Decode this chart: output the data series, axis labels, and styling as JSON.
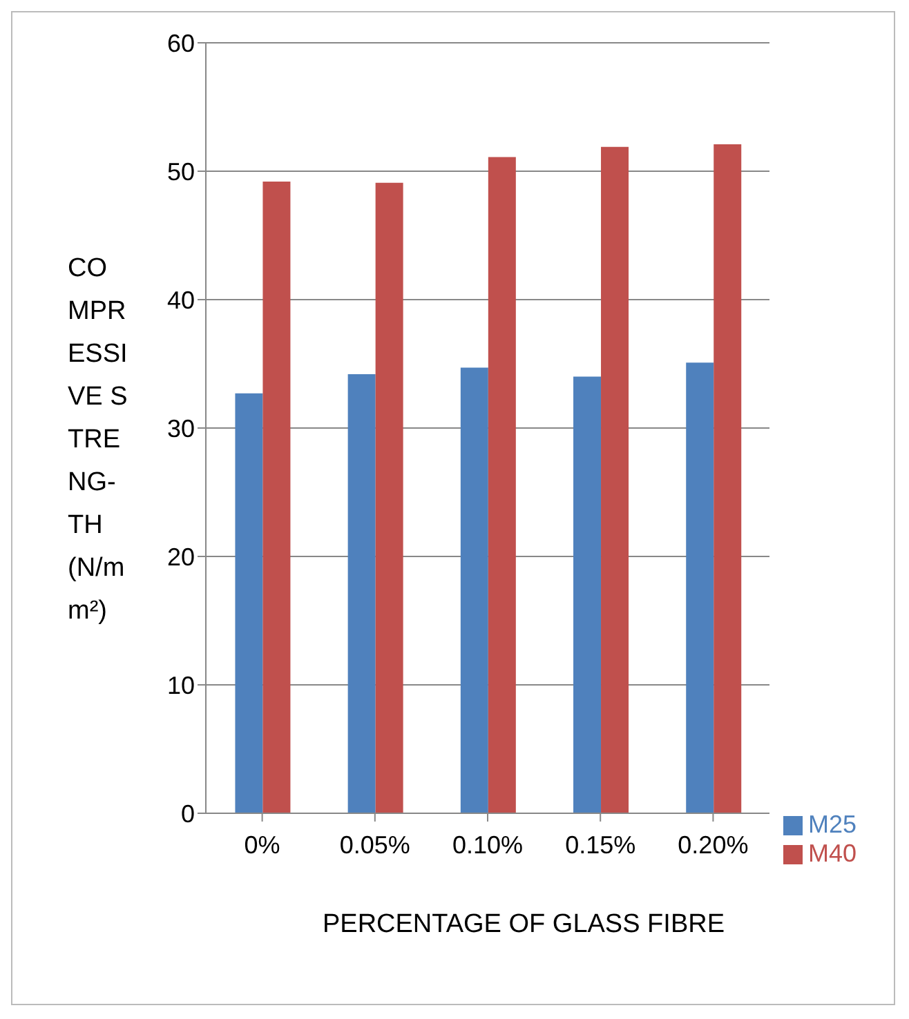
{
  "chart_data": {
    "type": "bar",
    "xlabel": "PERCENTAGE OF GLASS FIBRE",
    "ylabel": "COMPRESSIVE STRENG-TH (N/mm²)",
    "categories": [
      "0%",
      "0.05%",
      "0.10%",
      "0.15%",
      "0.20%"
    ],
    "series": [
      {
        "name": "M25",
        "color": "#4f81bd",
        "values": [
          32.7,
          34.2,
          34.7,
          34.0,
          35.1
        ]
      },
      {
        "name": "M40",
        "color": "#c0504d",
        "values": [
          49.2,
          49.1,
          51.1,
          51.9,
          52.1
        ]
      }
    ],
    "ylim": [
      0,
      60
    ],
    "yticks": [
      0,
      10,
      20,
      30,
      40,
      50,
      60
    ],
    "grid": "y",
    "legend": "right"
  }
}
